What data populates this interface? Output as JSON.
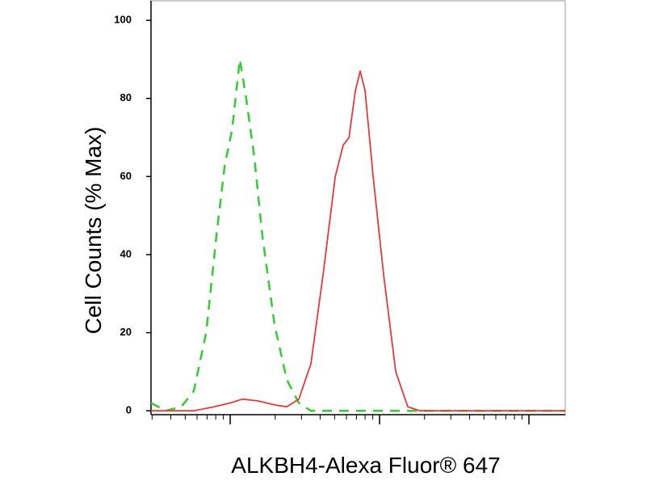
{
  "chart_data": {
    "type": "line",
    "x_label": "ALKBH4-Alexa Fluor® 647",
    "y_label": "Cell Counts (% Max)",
    "xscale": "log",
    "xlim": [
      29.5,
      17500
    ],
    "xticks": [
      100,
      1000,
      10000
    ],
    "xminorticks": [
      30,
      40,
      50,
      60,
      70,
      80,
      90,
      200,
      300,
      400,
      500,
      600,
      700,
      800,
      900,
      2000,
      3000,
      4000,
      5000,
      6000,
      7000,
      8000,
      9000
    ],
    "ylim": [
      -1,
      105
    ],
    "yticks": [
      0,
      20,
      40,
      60,
      80,
      100
    ],
    "series": [
      {
        "color": "#33cc33",
        "linestyle": "dashed",
        "x": [
          29.5,
          37,
          47,
          57,
          69,
          81,
          92,
          103,
          116,
          128,
          145,
          164,
          198,
          239,
          288,
          347,
          419,
          17500
        ],
        "values": [
          2,
          0,
          1,
          5,
          20,
          45,
          63,
          72,
          90,
          80,
          65,
          45,
          22,
          8,
          2,
          0,
          0,
          0
        ]
      },
      {
        "color": "#e8393a",
        "linestyle": "solid",
        "x": [
          29.5,
          57,
          78,
          100,
          121,
          155,
          198,
          239,
          288,
          347,
          419,
          505,
          571,
          624,
          689,
          742,
          800,
          906,
          1064,
          1283,
          1546,
          1862,
          17500
        ],
        "values": [
          0,
          0,
          1,
          2,
          3,
          2.5,
          1.5,
          1,
          3,
          12,
          35,
          60,
          68,
          70,
          82,
          87,
          82,
          60,
          35,
          10,
          1,
          0,
          0
        ]
      }
    ]
  }
}
